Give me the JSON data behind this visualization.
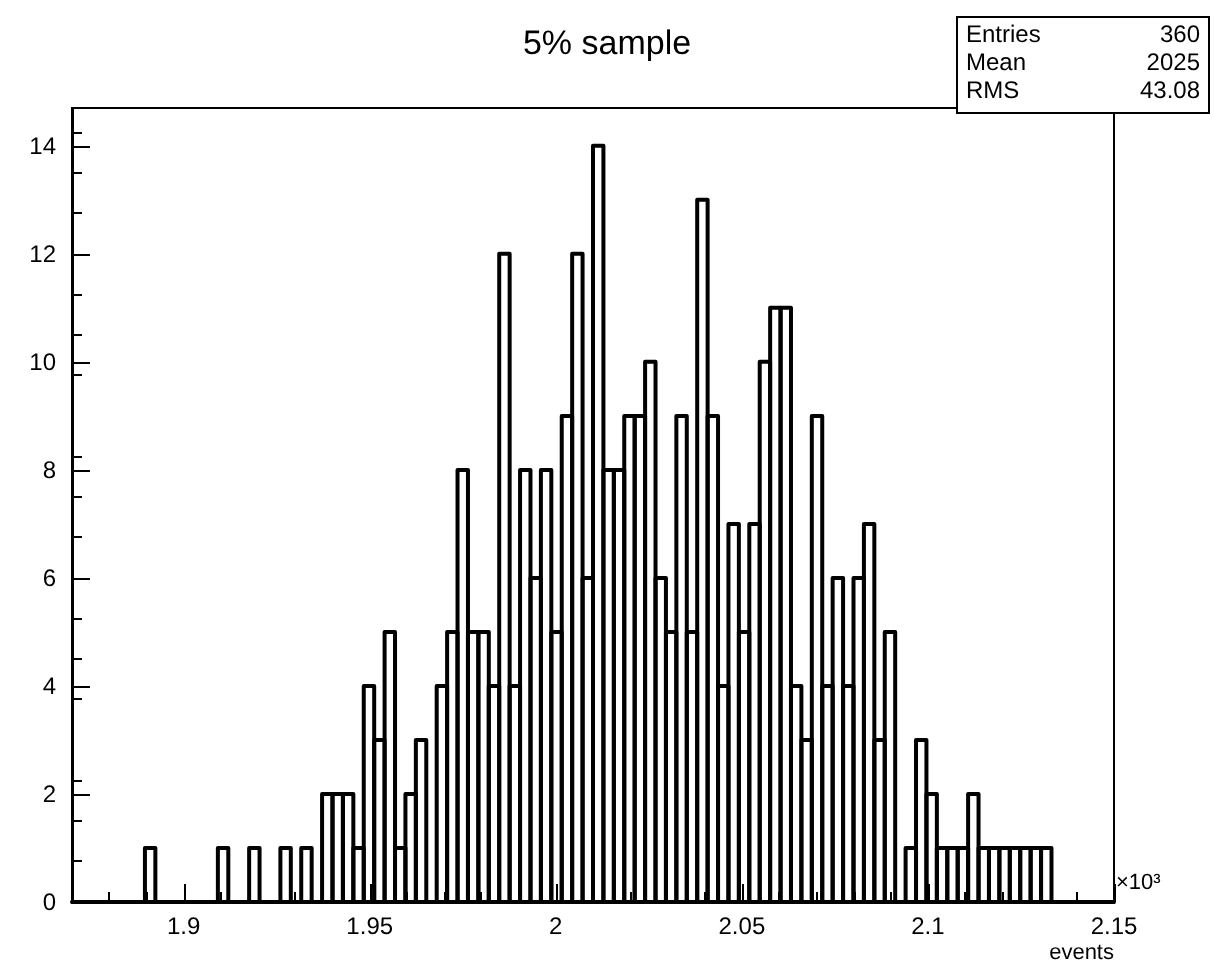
{
  "chart_data": {
    "type": "histogram",
    "title": "5% sample",
    "xlabel": "events",
    "bins": [
      1.87,
      1.8728,
      1.8756,
      1.8784,
      1.8812,
      1.884,
      1.8868,
      1.8896,
      1.8924,
      1.8952,
      1.898,
      1.9008,
      1.9036,
      1.9064,
      1.9092,
      1.912,
      1.9148,
      1.9176,
      1.9204,
      1.9232,
      1.926,
      1.9288,
      1.9316,
      1.9344,
      1.9372,
      1.94,
      1.9428,
      1.9456,
      1.9484,
      1.9512,
      1.954,
      1.9568,
      1.9596,
      1.9624,
      1.9652,
      1.968,
      1.9708,
      1.9736,
      1.9764,
      1.9792,
      1.982,
      1.9848,
      1.9876,
      1.9904,
      1.9932,
      1.996,
      1.9988,
      2.0016,
      2.0044,
      2.0072,
      2.01,
      2.0128,
      2.0156,
      2.0184,
      2.0212,
      2.024,
      2.0268,
      2.0296,
      2.0324,
      2.0352,
      2.038,
      2.0408,
      2.0436,
      2.0464,
      2.0492,
      2.052,
      2.0548,
      2.0576,
      2.0604,
      2.0632,
      2.066,
      2.0688,
      2.0716,
      2.0744,
      2.0772,
      2.08,
      2.0828,
      2.0856,
      2.0884,
      2.0912,
      2.094,
      2.0968,
      2.0996,
      2.1024,
      2.1052,
      2.108,
      2.1108,
      2.1136,
      2.1164,
      2.1192,
      2.122,
      2.1248,
      2.1276,
      2.1304,
      2.1332,
      2.136,
      2.1388,
      2.1416,
      2.1444,
      2.1472,
      2.15
    ],
    "values": [
      0,
      0,
      0,
      0,
      0,
      0,
      0,
      1,
      0,
      0,
      0,
      0,
      0,
      0,
      1,
      0,
      0,
      1,
      0,
      0,
      1,
      0,
      1,
      0,
      2,
      2,
      2,
      1,
      4,
      3,
      5,
      1,
      2,
      3,
      0,
      4,
      5,
      8,
      5,
      5,
      4,
      12,
      4,
      8,
      6,
      8,
      5,
      9,
      12,
      6,
      14,
      8,
      8,
      9,
      9,
      10,
      6,
      5,
      9,
      5,
      13,
      9,
      4,
      7,
      5,
      7,
      10,
      11,
      11,
      4,
      3,
      9,
      4,
      6,
      4,
      6,
      7,
      3,
      5,
      0,
      1,
      3,
      2,
      1,
      1,
      1,
      2,
      1,
      1,
      1,
      1,
      1,
      1,
      1,
      0,
      0,
      0,
      0,
      0,
      0
    ],
    "color": "#000000",
    "xlim": [
      1.87,
      2.15
    ],
    "xticks": [
      1.9,
      1.95,
      2,
      2.05,
      2.1,
      2.15
    ],
    "ylim": [
      0,
      14.7
    ],
    "yticks": [
      0,
      2,
      4,
      6,
      8,
      10,
      12,
      14
    ],
    "annotations": [
      "Entries",
      "360",
      "Mean",
      "2025",
      "RMS",
      "43.08",
      "×10³"
    ],
    "grid": false
  }
}
